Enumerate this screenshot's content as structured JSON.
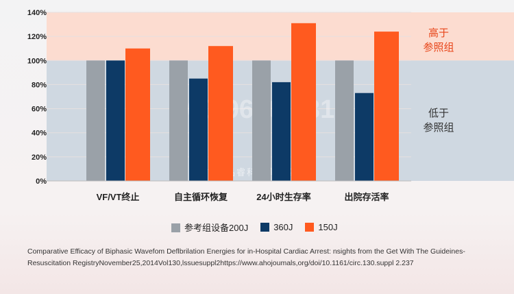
{
  "chart_data": {
    "type": "bar",
    "categories": [
      "VF/VT终止",
      "自主循环恢复",
      "24小时生存率",
      "出院存活率"
    ],
    "series": [
      {
        "name": "参考组设备200J",
        "color": "#9aa1a8",
        "values": [
          100,
          100,
          100,
          100
        ]
      },
      {
        "name": "360J",
        "color": "#0d3a66",
        "values": [
          100,
          85,
          82,
          73
        ]
      },
      {
        "name": "150J",
        "color": "#ff5a1f",
        "values": [
          110,
          112,
          131,
          124
        ]
      }
    ],
    "ylim": [
      0,
      140
    ],
    "yticks": [
      "0%",
      "20%",
      "40%",
      "60%",
      "80%",
      "100%",
      "120%",
      "140%"
    ],
    "reference_line": 100,
    "region_labels": {
      "above": [
        "高于",
        "参照组"
      ],
      "below": [
        "低于",
        "参照组"
      ]
    },
    "legend_position": "bottom"
  },
  "watermark": {
    "phone": "400-9620-331",
    "company": "广东品睿科技有限公司"
  },
  "citation": "Comparative Efficacy of Biphasic Wavefom Deflbrilation Energies for in-Hospital Cardiac Arrest: nsights from the Get With The Guideines-Resuscitation RegistryNovember25,2014Vol130,lssuesuppl2https://www.ahojoumals,org/doi/10.1161/circ.130.suppl 2.237"
}
